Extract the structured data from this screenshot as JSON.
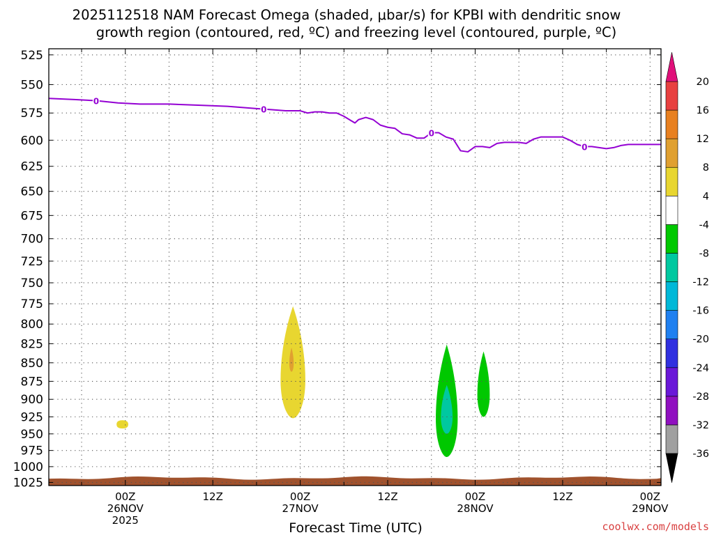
{
  "chart_data": {
    "type": "time-height",
    "title_line1": "2025112518 NAM Forecast Omega (shaded, μbar/s) for KPBI with dendritic snow",
    "title_line2": "growth region (contoured, red, ºC) and freezing level (contoured, purple, ºC)",
    "xlabel": "Forecast Time (UTC)",
    "credit": "coolwx.com/models",
    "y_axis": {
      "label_values": [
        525,
        550,
        575,
        600,
        625,
        650,
        675,
        700,
        725,
        750,
        775,
        800,
        825,
        850,
        875,
        900,
        925,
        950,
        975,
        1000,
        1025
      ],
      "ylim": [
        520,
        1030
      ],
      "units": "hPa"
    },
    "x_axis": {
      "range_hours": [
        -10.5,
        73.5
      ],
      "tick_labels": [
        {
          "hour": 0,
          "lines": [
            "00Z",
            "26NOV",
            "2025"
          ]
        },
        {
          "hour": 12,
          "lines": [
            "12Z"
          ]
        },
        {
          "hour": 24,
          "lines": [
            "00Z",
            "27NOV"
          ]
        },
        {
          "hour": 36,
          "lines": [
            "12Z"
          ]
        },
        {
          "hour": 48,
          "lines": [
            "00Z",
            "28NOV"
          ]
        },
        {
          "hour": 60,
          "lines": [
            "12Z"
          ]
        },
        {
          "hour": 72,
          "lines": [
            "00Z",
            "29NOV"
          ]
        }
      ]
    },
    "freezing_level": {
      "color": "#9400d3",
      "contour_label": "0",
      "points": [
        [
          -10.5,
          562
        ],
        [
          -7,
          563
        ],
        [
          -4,
          564
        ],
        [
          -1,
          566
        ],
        [
          2,
          567
        ],
        [
          6,
          567
        ],
        [
          10,
          568
        ],
        [
          14,
          569
        ],
        [
          18,
          571
        ],
        [
          20,
          572
        ],
        [
          22,
          573
        ],
        [
          24,
          573
        ],
        [
          25,
          575
        ],
        [
          26,
          574
        ],
        [
          27,
          574
        ],
        [
          28,
          575
        ],
        [
          29,
          575
        ],
        [
          30,
          578
        ],
        [
          31,
          582
        ],
        [
          31.5,
          584
        ],
        [
          32,
          581
        ],
        [
          33,
          579
        ],
        [
          34,
          581
        ],
        [
          35,
          586
        ],
        [
          36,
          588
        ],
        [
          37,
          589
        ],
        [
          38,
          594
        ],
        [
          39,
          595
        ],
        [
          40,
          598
        ],
        [
          41,
          598
        ],
        [
          42,
          593
        ],
        [
          43,
          593
        ],
        [
          44,
          597
        ],
        [
          45,
          599
        ],
        [
          46,
          610
        ],
        [
          47,
          611
        ],
        [
          48,
          606
        ],
        [
          49,
          606
        ],
        [
          50,
          607
        ],
        [
          51,
          603
        ],
        [
          52,
          602
        ],
        [
          53,
          602
        ],
        [
          54,
          602
        ],
        [
          55,
          603
        ],
        [
          56,
          599
        ],
        [
          57,
          597
        ],
        [
          58,
          597
        ],
        [
          59,
          597
        ],
        [
          60,
          597
        ],
        [
          61,
          600
        ],
        [
          62,
          604
        ],
        [
          63,
          606
        ],
        [
          64,
          606
        ],
        [
          65,
          607
        ],
        [
          66,
          608
        ],
        [
          67,
          607
        ],
        [
          68,
          605
        ],
        [
          69,
          604
        ],
        [
          70,
          604
        ],
        [
          71,
          604
        ],
        [
          72,
          604
        ],
        [
          73.5,
          604
        ]
      ],
      "label_hours": [
        -4,
        19,
        42,
        63
      ]
    },
    "omega_areas": [
      {
        "sign": "positive",
        "color": "#e8d630",
        "hours": [
          21.3,
          24.7
        ],
        "pressure_hpa": [
          778,
          927
        ]
      },
      {
        "sign": "positive",
        "color": "#e0a030",
        "hours": [
          22.5,
          23.1
        ],
        "pressure_hpa": [
          830,
          862
        ]
      },
      {
        "sign": "positive",
        "color": "#e8d630",
        "hours": [
          -1.2,
          0.4
        ],
        "pressure_hpa": [
          930,
          942
        ]
      },
      {
        "sign": "negative",
        "color": "#00c800",
        "hours": [
          42.6,
          45.6
        ],
        "pressure_hpa": [
          826,
          985
        ]
      },
      {
        "sign": "negative",
        "color": "#00c8a0",
        "hours": [
          43.3,
          44.9
        ],
        "pressure_hpa": [
          880,
          950
        ]
      },
      {
        "sign": "negative",
        "color": "#00c800",
        "hours": [
          48.3,
          50
        ],
        "pressure_hpa": [
          835,
          925
        ]
      }
    ],
    "terrain": {
      "color": "#a0522d",
      "surface_hpa": 1018
    },
    "colorbar": {
      "levels": [
        -36,
        -32,
        -28,
        -24,
        -20,
        -16,
        -12,
        -8,
        -4,
        4,
        8,
        12,
        16,
        20
      ],
      "colors": [
        "#a0a0a0",
        "#9010c0",
        "#6a18d8",
        "#3030e0",
        "#2080f0",
        "#00b8d8",
        "#00c8a0",
        "#00c800",
        "#ffffff",
        "#e8d630",
        "#e0a030",
        "#e88020",
        "#e84040"
      ],
      "below_color": "#000000",
      "above_color": "#e0107a"
    }
  }
}
